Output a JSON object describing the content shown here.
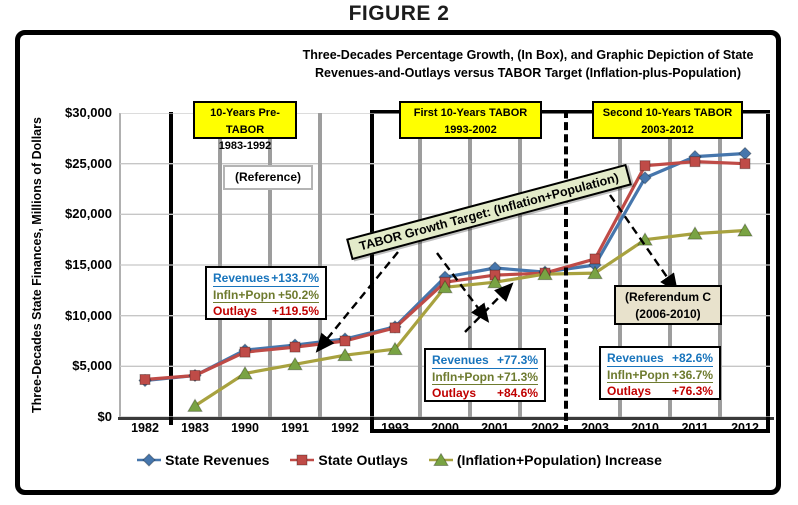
{
  "figure_label": "FIGURE 2",
  "chart_title": {
    "line1": "Three-Decades Percentage Growth, (In Box), and Graphic Depiction of State",
    "line2": "Revenues-and-Outlays versus TABOR Target (Inflation-plus-Population)"
  },
  "y_axis": {
    "title": "Three-Decades State Finances, Millions of Dollars",
    "ticks": [
      "$30,000",
      "$25,000",
      "$20,000",
      "$15,000",
      "$10,000",
      "$5,000",
      "$0"
    ]
  },
  "period_boxes": [
    {
      "line1": "10-Years Pre-TABOR",
      "line2": "1983-1992"
    },
    {
      "line1": "First 10-Years TABOR",
      "line2": "1993-2002"
    },
    {
      "line1": "Second 10-Years TABOR",
      "line2": "2003-2012"
    }
  ],
  "reference_label": "(Reference)",
  "tabor_target_label": "TABOR Growth Target: (Inflation+Population)",
  "referendum_box": {
    "line1": "(Referendum C",
    "line2": "(2006-2010)"
  },
  "stat_boxes": [
    {
      "rows": [
        {
          "label": "Revenues",
          "value": "+133.7%"
        },
        {
          "label": "Infln+Popn",
          "value": "+50.2%"
        },
        {
          "label": "Outlays",
          "value": "+119.5%"
        }
      ]
    },
    {
      "rows": [
        {
          "label": "Revenues",
          "value": "+77.3%"
        },
        {
          "label": "Infln+Popn",
          "value": "+71.3%"
        },
        {
          "label": "Outlays",
          "value": "+84.6%"
        }
      ]
    },
    {
      "rows": [
        {
          "label": "Revenues",
          "value": "+82.6%"
        },
        {
          "label": "Infln+Popn",
          "value": "+36.7%"
        },
        {
          "label": "Outlays",
          "value": "+76.3%"
        }
      ]
    }
  ],
  "legend": [
    {
      "label": "State Revenues",
      "marker": "diamond"
    },
    {
      "label": "State Outlays",
      "marker": "square"
    },
    {
      "label": "(Inflation+Population) Increase",
      "marker": "triangle"
    }
  ],
  "colors": {
    "revenues_series": "#4676ac",
    "outlays_series": "#bf4b47",
    "inflation_line": "#a8a23f",
    "inflation_marker": "#79a343",
    "stat_revenues_text": "#1874bc",
    "stat_inflation_text": "#6e7b2f",
    "stat_outlays_text": "#c00000",
    "period_box_bg": "#ffff00",
    "tabor_label_bg": "#e3ebc9",
    "referendum_bg": "#e8e2cc"
  },
  "chart_data": {
    "type": "line",
    "title": "Three-Decades Percentage Growth, (In Box), and Graphic Depiction of State Revenues-and-Outlays versus TABOR Target (Inflation-plus-Population)",
    "ylabel": "Three-Decades State Finances, Millions of Dollars",
    "ylim": [
      0,
      30000
    ],
    "y_tick_step": 5000,
    "grid": true,
    "legend_position": "bottom",
    "categories": [
      "1982",
      "1983",
      "1990",
      "1991",
      "1992",
      "1993",
      "2000",
      "2001",
      "2002",
      "2003",
      "2010",
      "2011",
      "2012"
    ],
    "series": [
      {
        "name": "State Revenues",
        "marker": "diamond",
        "color": "#4676ac",
        "values": [
          3600,
          4100,
          6600,
          7100,
          7700,
          8900,
          13800,
          14700,
          14300,
          15000,
          23600,
          25700,
          26000
        ]
      },
      {
        "name": "State Outlays",
        "marker": "square",
        "color": "#bf4b47",
        "values": [
          3700,
          4100,
          6400,
          6900,
          7500,
          8800,
          13300,
          14000,
          14200,
          15600,
          24800,
          25200,
          25000
        ]
      },
      {
        "name": "(Inflation+Population) Increase",
        "marker": "triangle",
        "color": "#a8a23f",
        "marker_color": "#79a343",
        "values": [
          null,
          1100,
          4300,
          5200,
          6100,
          6700,
          12800,
          13300,
          14100,
          14200,
          17500,
          18100,
          18400
        ]
      }
    ],
    "annotation_arrows": [
      {
        "x1": 278,
        "y1": 139,
        "x2": 198,
        "y2": 237
      },
      {
        "x1": 317,
        "y1": 140,
        "x2": 367,
        "y2": 207
      },
      {
        "x1": 345,
        "y1": 219,
        "x2": 391,
        "y2": 172
      },
      {
        "x1": 490,
        "y1": 82,
        "x2": 556,
        "y2": 177
      }
    ]
  }
}
